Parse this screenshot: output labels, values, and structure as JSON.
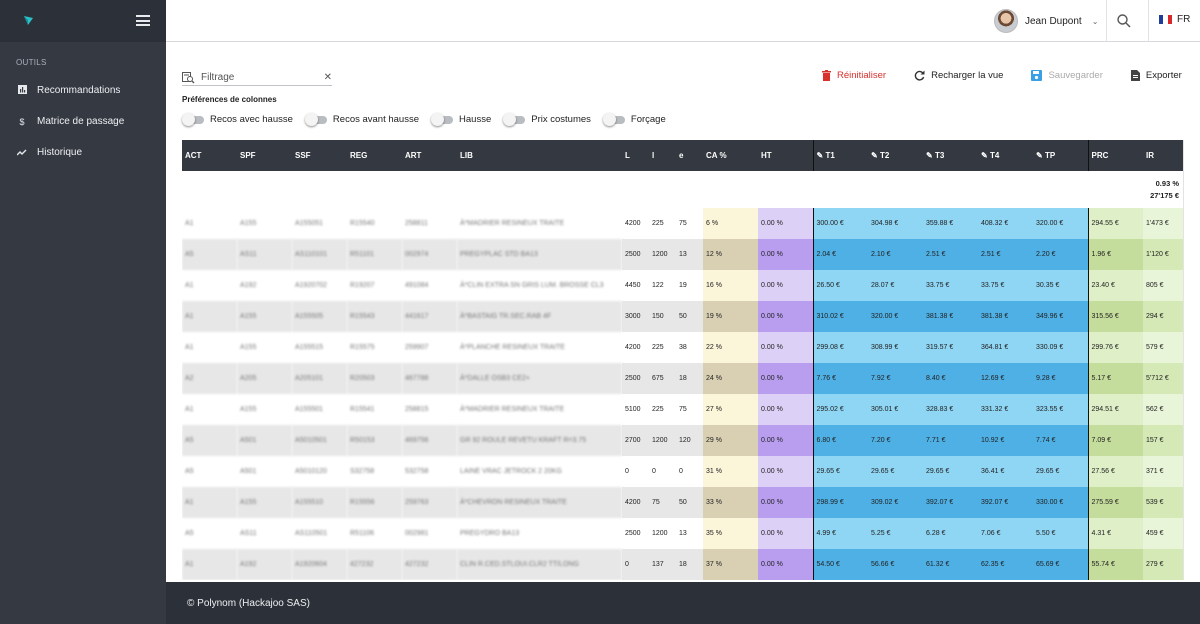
{
  "sidebar": {
    "section_title": "OUTILS",
    "items": [
      {
        "label": "Recommandations",
        "icon": "chart-icon"
      },
      {
        "label": "Matrice de passage",
        "icon": "dollar-icon"
      },
      {
        "label": "Historique",
        "icon": "trend-icon"
      }
    ]
  },
  "topbar": {
    "user_name": "Jean Dupont",
    "language": "FR"
  },
  "filter": {
    "placeholder": "Filtrage"
  },
  "preferences": {
    "title": "Préférences de colonnes",
    "toggles": [
      "Recos avec hausse",
      "Recos avant hausse",
      "Hausse",
      "Prix costumes",
      "Forçage"
    ]
  },
  "actions": {
    "reset": "Réinitialiser",
    "reload": "Recharger la vue",
    "save": "Sauvegarder",
    "export": "Exporter"
  },
  "table": {
    "columns": [
      "ACT",
      "SPF",
      "SSF",
      "REG",
      "ART",
      "LIB",
      "L",
      "l",
      "e",
      "CA %",
      "HT",
      "T1",
      "T2",
      "T3",
      "T4",
      "TP",
      "PRC",
      "IR"
    ],
    "totals": {
      "ht_percent": "0.93 %",
      "ir_total": "27'175 €"
    },
    "rows": [
      [
        "A1",
        "A155",
        "A155051",
        "R15540",
        "258811",
        "À*MADRIER RESINEUX TRAITE",
        "4200",
        "225",
        "75",
        "6 %",
        "0.00 %",
        "300.00 €",
        "304.98 €",
        "359.88 €",
        "408.32 €",
        "320.00 €",
        "294.55 €",
        "1'473 €"
      ],
      [
        "A5",
        "AS11",
        "AS110101",
        "R51101",
        "002974",
        "PREGYPLAC STD BA13",
        "2500",
        "1200",
        "13",
        "12 %",
        "0.00 %",
        "2.04 €",
        "2.10 €",
        "2.51 €",
        "2.51 €",
        "2.20 €",
        "1.96 €",
        "1'120 €"
      ],
      [
        "A1",
        "A192",
        "A1920702",
        "R19207",
        "491084",
        "À*CLIN EXTRA SN GRIS LUM. BROSSE CL3",
        "4450",
        "122",
        "19",
        "16 %",
        "0.00 %",
        "26.50 €",
        "28.07 €",
        "33.75 €",
        "33.75 €",
        "30.35 €",
        "23.40 €",
        "805 €"
      ],
      [
        "A1",
        "A155",
        "A155505",
        "R15543",
        "441617",
        "À*BASTAIG TR.SEC.RAB 4F",
        "3000",
        "150",
        "50",
        "19 %",
        "0.00 %",
        "310.02 €",
        "320.00 €",
        "381.38 €",
        "381.38 €",
        "349.96 €",
        "315.56 €",
        "294 €"
      ],
      [
        "A1",
        "A155",
        "A155515",
        "R15575",
        "259907",
        "À*PLANCHE RESINEUX TRAITE",
        "4200",
        "225",
        "38",
        "22 %",
        "0.00 %",
        "299.08 €",
        "308.99 €",
        "319.57 €",
        "364.81 €",
        "330.09 €",
        "299.76 €",
        "579 €"
      ],
      [
        "A2",
        "A205",
        "A205101",
        "R20503",
        "467788",
        "À*DALLE OSB3 CE2+",
        "2500",
        "675",
        "18",
        "24 %",
        "0.00 %",
        "7.76 €",
        "7.92 €",
        "8.40 €",
        "12.69 €",
        "9.28 €",
        "5.17 €",
        "5'712 €"
      ],
      [
        "A1",
        "A155",
        "A155501",
        "R15541",
        "258815",
        "À*MADRIER RESINEUX TRAITE",
        "5100",
        "225",
        "75",
        "27 %",
        "0.00 %",
        "295.02 €",
        "305.01 €",
        "328.83 €",
        "331.32 €",
        "323.55 €",
        "294.51 €",
        "562 €"
      ],
      [
        "A5",
        "A501",
        "A5010501",
        "R50153",
        "469756",
        "GR 92 ROULE REVETU KRAFT R=3.75",
        "2700",
        "1200",
        "120",
        "29 %",
        "0.00 %",
        "6.80 €",
        "7.20 €",
        "7.71 €",
        "10.92 €",
        "7.74 €",
        "7.09 €",
        "157 €"
      ],
      [
        "A5",
        "A501",
        "A5010120",
        "S32758",
        "532758",
        "LAINE VRAC JETROCK 2 20KG",
        "0",
        "0",
        "0",
        "31 %",
        "0.00 %",
        "29.65 €",
        "29.65 €",
        "29.65 €",
        "36.41 €",
        "29.65 €",
        "27.56 €",
        "371 €"
      ],
      [
        "A1",
        "A155",
        "A155510",
        "R15556",
        "259763",
        "À*CHEVRON RESINEUX TRAITE",
        "4200",
        "75",
        "50",
        "33 %",
        "0.00 %",
        "298.99 €",
        "309.02 €",
        "392.07 €",
        "392.07 €",
        "330.00 €",
        "275.59 €",
        "539 €"
      ],
      [
        "A5",
        "AS11",
        "AS110501",
        "R51106",
        "002981",
        "PREGYDRO BA13",
        "2500",
        "1200",
        "13",
        "35 %",
        "0.00 %",
        "4.99 €",
        "5.25 €",
        "6.28 €",
        "7.06 €",
        "5.50 €",
        "4.31 €",
        "459 €"
      ],
      [
        "A1",
        "A192",
        "A1920604",
        "427232",
        "427232",
        "CLIN R.CED.STLOUI.CLR2 TT/LONG",
        "0",
        "137",
        "18",
        "37 %",
        "0.00 %",
        "54.50 €",
        "56.66 €",
        "61.32 €",
        "62.35 €",
        "65.69 €",
        "55.74 €",
        "279 €"
      ]
    ]
  },
  "footer": {
    "text": "© Polynom (Hackajoo SAS)"
  },
  "colors": {
    "sidebar": "#353942",
    "header_bg": "#343840",
    "reset_red": "#d8322e",
    "t_col_light": "#8fd6f4",
    "t_col_dark": "#4fb0e5",
    "ht_col": "#b99ef0"
  }
}
